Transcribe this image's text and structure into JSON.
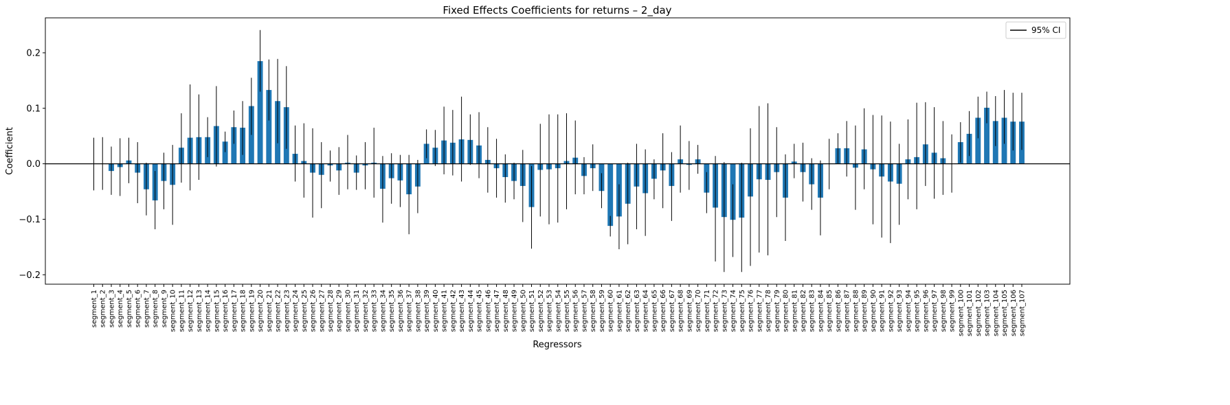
{
  "chart_data": {
    "type": "bar",
    "title": "Fixed Effects Coefficients for returns – 2_day",
    "xlabel": "Regressors",
    "ylabel": "Coefficient",
    "ylim": [
      -0.217,
      0.263
    ],
    "yticks": [
      -0.2,
      -0.1,
      0.0,
      0.1,
      0.2
    ],
    "ytick_labels": [
      "−0.2",
      "−0.1",
      "0.0",
      "0.1",
      "0.2"
    ],
    "grid": false,
    "zero_line": true,
    "bar_color": "#1f77b4",
    "errorbar_color": "#000000",
    "legend": {
      "position": "top-right",
      "entries": [
        {
          "label": "95% CI",
          "marker": "line",
          "color": "#000000"
        }
      ]
    },
    "categories": [
      "segment_1",
      "segment_2",
      "segment_3",
      "segment_4",
      "segment_5",
      "segment_6",
      "segment_7",
      "segment_8",
      "segment_9",
      "segment_10",
      "segment_11",
      "segment_12",
      "segment_13",
      "segment_14",
      "segment_15",
      "segment_16",
      "segment_17",
      "segment_18",
      "segment_19",
      "segment_20",
      "segment_21",
      "segment_22",
      "segment_23",
      "segment_24",
      "segment_25",
      "segment_26",
      "segment_27",
      "segment_28",
      "segment_29",
      "segment_30",
      "segment_31",
      "segment_32",
      "segment_33",
      "segment_34",
      "segment_35",
      "segment_36",
      "segment_37",
      "segment_38",
      "segment_39",
      "segment_40",
      "segment_41",
      "segment_42",
      "segment_43",
      "segment_44",
      "segment_45",
      "segment_46",
      "segment_47",
      "segment_48",
      "segment_49",
      "segment_50",
      "segment_51",
      "segment_52",
      "segment_53",
      "segment_54",
      "segment_55",
      "segment_56",
      "segment_57",
      "segment_58",
      "segment_59",
      "segment_60",
      "segment_61",
      "segment_62",
      "segment_63",
      "segment_64",
      "segment_65",
      "segment_66",
      "segment_67",
      "segment_68",
      "segment_69",
      "segment_70",
      "segment_71",
      "segment_72",
      "segment_73",
      "segment_74",
      "segment_75",
      "segment_76",
      "segment_77",
      "segment_78",
      "segment_79",
      "segment_80",
      "segment_81",
      "segment_82",
      "segment_83",
      "segment_84",
      "segment_85",
      "segment_86",
      "segment_87",
      "segment_88",
      "segment_89",
      "segment_90",
      "segment_91",
      "segment_92",
      "segment_93",
      "segment_94",
      "segment_95",
      "segment_96",
      "segment_97",
      "segment_98",
      "segment_99",
      "segment_100",
      "segment_101",
      "segment_102",
      "segment_103",
      "segment_104",
      "segment_105",
      "segment_106",
      "segment_107"
    ],
    "values": [
      0.0,
      0.0,
      -0.013,
      -0.006,
      0.006,
      -0.016,
      -0.046,
      -0.066,
      -0.031,
      -0.038,
      0.029,
      0.047,
      0.048,
      0.048,
      0.068,
      0.04,
      0.066,
      0.065,
      0.104,
      0.185,
      0.133,
      0.113,
      0.102,
      0.018,
      0.005,
      -0.016,
      -0.02,
      -0.003,
      -0.012,
      0.002,
      -0.016,
      -0.003,
      0.002,
      -0.045,
      -0.026,
      -0.03,
      -0.055,
      -0.041,
      0.036,
      0.029,
      0.042,
      0.038,
      0.044,
      0.043,
      0.033,
      0.007,
      -0.008,
      -0.024,
      -0.031,
      -0.04,
      -0.078,
      -0.011,
      -0.01,
      -0.008,
      0.005,
      0.011,
      -0.022,
      -0.008,
      -0.049,
      -0.112,
      -0.095,
      -0.072,
      -0.041,
      -0.053,
      -0.027,
      -0.012,
      -0.04,
      0.008,
      -0.002,
      0.008,
      -0.052,
      -0.079,
      -0.096,
      -0.101,
      -0.097,
      -0.059,
      -0.028,
      -0.029,
      -0.015,
      -0.061,
      0.004,
      -0.015,
      -0.037,
      -0.061,
      0.0,
      0.028,
      0.028,
      -0.007,
      0.026,
      -0.01,
      -0.023,
      -0.032,
      -0.036,
      0.008,
      0.012,
      0.035,
      0.02,
      0.01,
      0.0,
      0.039,
      0.054,
      0.083,
      0.101,
      0.077,
      0.083,
      0.076,
      0.076
    ],
    "ci_low": [
      -0.048,
      -0.047,
      -0.056,
      -0.058,
      -0.035,
      -0.071,
      -0.093,
      -0.118,
      -0.082,
      -0.11,
      -0.034,
      -0.048,
      -0.029,
      0.012,
      -0.005,
      0.021,
      0.036,
      0.016,
      0.052,
      0.13,
      0.078,
      0.037,
      0.027,
      -0.032,
      -0.061,
      -0.097,
      -0.08,
      -0.032,
      -0.056,
      -0.046,
      -0.047,
      -0.046,
      -0.061,
      -0.106,
      -0.072,
      -0.078,
      -0.127,
      -0.089,
      0.01,
      -0.004,
      -0.019,
      -0.021,
      -0.032,
      -0.002,
      -0.026,
      -0.052,
      -0.061,
      -0.07,
      -0.064,
      -0.105,
      -0.153,
      -0.095,
      -0.109,
      -0.106,
      -0.082,
      -0.055,
      -0.055,
      -0.049,
      -0.08,
      -0.131,
      -0.154,
      -0.145,
      -0.118,
      -0.13,
      -0.064,
      -0.08,
      -0.103,
      -0.052,
      -0.047,
      -0.018,
      -0.089,
      -0.176,
      -0.195,
      -0.168,
      -0.195,
      -0.184,
      -0.16,
      -0.165,
      -0.096,
      -0.139,
      -0.026,
      -0.068,
      -0.083,
      -0.129,
      -0.046,
      0.001,
      -0.023,
      -0.083,
      -0.046,
      -0.109,
      -0.133,
      -0.143,
      -0.11,
      -0.064,
      -0.082,
      -0.04,
      -0.063,
      -0.056,
      -0.052,
      0.002,
      0.014,
      0.046,
      0.073,
      0.032,
      0.036,
      0.024,
      0.025
    ],
    "ci_high": [
      0.047,
      0.048,
      0.031,
      0.046,
      0.047,
      0.039,
      0.002,
      -0.013,
      0.02,
      0.034,
      0.091,
      0.143,
      0.125,
      0.084,
      0.14,
      0.058,
      0.096,
      0.113,
      0.155,
      0.241,
      0.188,
      0.189,
      0.176,
      0.069,
      0.073,
      0.064,
      0.039,
      0.024,
      0.03,
      0.052,
      0.015,
      0.039,
      0.065,
      0.014,
      0.019,
      0.016,
      0.016,
      0.007,
      0.062,
      0.061,
      0.103,
      0.097,
      0.121,
      0.089,
      0.093,
      0.066,
      0.045,
      0.017,
      0.002,
      0.025,
      -0.004,
      0.072,
      0.089,
      0.089,
      0.091,
      0.078,
      0.012,
      0.035,
      -0.017,
      -0.094,
      -0.037,
      0.002,
      0.036,
      0.026,
      0.008,
      0.055,
      0.021,
      0.069,
      0.041,
      0.034,
      -0.015,
      0.014,
      0.003,
      -0.037,
      0.002,
      0.064,
      0.104,
      0.109,
      0.066,
      0.017,
      0.036,
      0.038,
      0.01,
      0.006,
      0.045,
      0.055,
      0.077,
      0.069,
      0.1,
      0.088,
      0.087,
      0.076,
      0.036,
      0.08,
      0.11,
      0.111,
      0.102,
      0.077,
      0.053,
      0.075,
      0.095,
      0.121,
      0.13,
      0.122,
      0.133,
      0.128,
      0.128
    ]
  }
}
